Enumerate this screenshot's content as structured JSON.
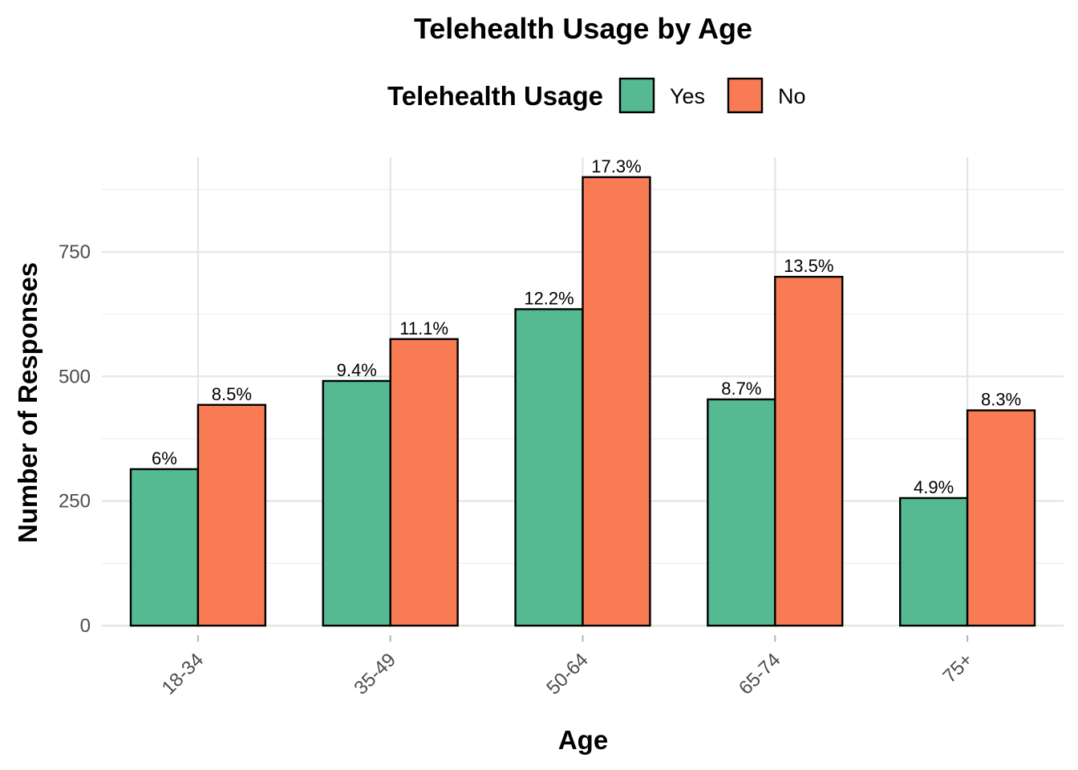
{
  "chart_data": {
    "type": "bar",
    "title": "Telehealth Usage by Age",
    "xlabel": "Age",
    "ylabel": "Number of Responses",
    "categories": [
      "18-34",
      "35-49",
      "50-64",
      "65-74",
      "75+"
    ],
    "series": [
      {
        "name": "Yes",
        "color": "#55B991",
        "values": [
          314,
          491,
          635,
          454,
          256
        ],
        "labels": [
          "6%",
          "9.4%",
          "12.2%",
          "8.7%",
          "4.9%"
        ]
      },
      {
        "name": "No",
        "color": "#F97B53",
        "values": [
          443,
          575,
          900,
          700,
          432
        ],
        "labels": [
          "8.5%",
          "11.1%",
          "17.3%",
          "13.5%",
          "8.3%"
        ]
      }
    ],
    "ylim": [
      0,
      940
    ],
    "yticks": [
      0,
      250,
      500,
      750
    ],
    "legend": {
      "title": "Telehealth Usage",
      "position": "top"
    },
    "grid": true
  }
}
